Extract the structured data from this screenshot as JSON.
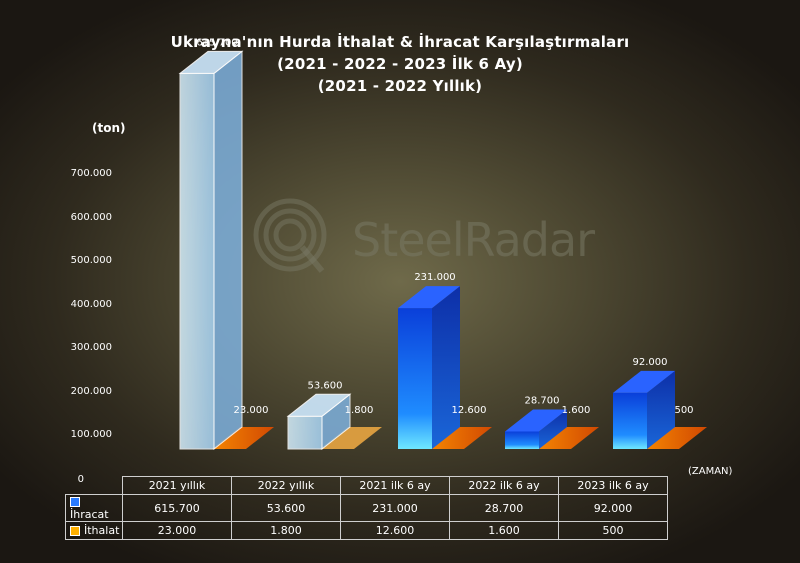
{
  "title": {
    "line1": "Ukrayna'nın Hurda İthalat & İhracat Karşılaştırmaları",
    "line2": "(2021 - 2022 - 2023 İlk 6 Ay)",
    "line3": "(2021 - 2022 Yıllık)"
  },
  "watermark": "SteelRadar",
  "colors": {
    "export": "#1a6dff",
    "import": "#ff6a00",
    "export_light": "#bfe4ff"
  },
  "chart_data": {
    "type": "bar",
    "categories": [
      "2021 yıllık",
      "2022 yıllık",
      "2021 ilk 6 ay",
      "2022 ilk 6 ay",
      "2023 ilk 6 ay"
    ],
    "series": [
      {
        "name": "İhracat",
        "values": [
          615700,
          53600,
          231000,
          28700,
          92000
        ],
        "labels": [
          "615.700",
          "53.600",
          "231.000",
          "28.700",
          "92.000"
        ]
      },
      {
        "name": "İthalat",
        "values": [
          23000,
          1800,
          12600,
          1600,
          500
        ],
        "labels": [
          "23.000",
          "1.800",
          "12.600",
          "1.600",
          "500"
        ]
      }
    ],
    "ylabel": "(ton)",
    "xlabel": "(ZAMAN)",
    "ylim": [
      0,
      700000
    ],
    "yticks": [
      0,
      100000,
      200000,
      300000,
      400000,
      500000,
      600000,
      700000
    ],
    "ytick_labels": [
      "0",
      "100.000",
      "200.000",
      "300.000",
      "400.000",
      "500.000",
      "600.000",
      "700.000"
    ],
    "legend": "data-table"
  }
}
